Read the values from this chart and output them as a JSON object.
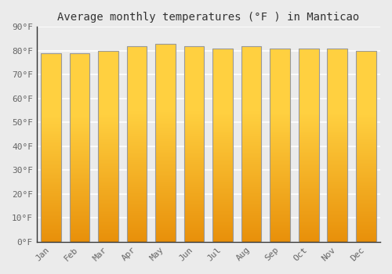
{
  "title": "Average monthly temperatures (°F ) in Manticao",
  "categories": [
    "Jan",
    "Feb",
    "Mar",
    "Apr",
    "May",
    "Jun",
    "Jul",
    "Aug",
    "Sep",
    "Oct",
    "Nov",
    "Dec"
  ],
  "values": [
    79,
    79,
    80,
    82,
    83,
    82,
    81,
    82,
    81,
    81,
    81,
    80
  ],
  "ylim": [
    0,
    90
  ],
  "yticks": [
    0,
    10,
    20,
    30,
    40,
    50,
    60,
    70,
    80,
    90
  ],
  "ytick_labels": [
    "0°F",
    "10°F",
    "20°F",
    "30°F",
    "40°F",
    "50°F",
    "60°F",
    "70°F",
    "80°F",
    "90°F"
  ],
  "background_color": "#ebebeb",
  "grid_color": "#ffffff",
  "bar_color_left": "#E8900A",
  "bar_color_center": "#FFD040",
  "bar_color_right": "#E8900A",
  "bar_outline_color": "#999999",
  "title_fontsize": 10,
  "tick_fontsize": 8,
  "font_family": "monospace",
  "tick_color": "#666666",
  "title_color": "#333333"
}
